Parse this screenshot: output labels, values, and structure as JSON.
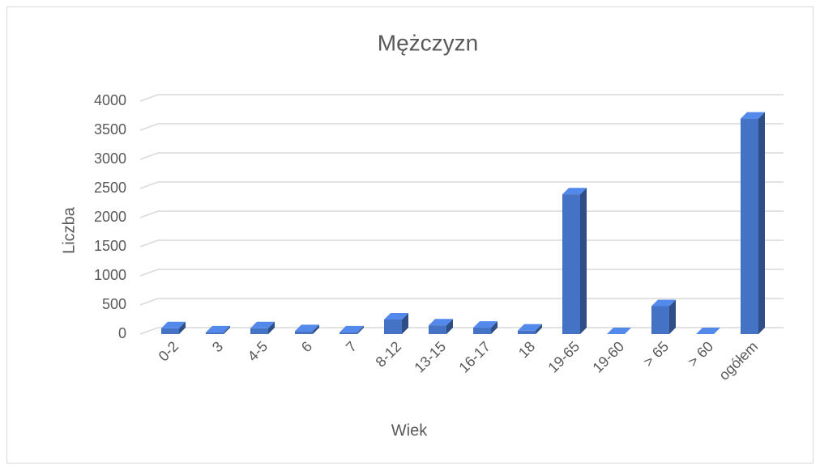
{
  "chart_data": {
    "type": "bar3d",
    "title": "Mężczyzn",
    "x_label": "Wiek",
    "y_label": "Liczba",
    "categories": [
      "0-2",
      "3",
      "4-5",
      "6",
      "7",
      "8-12",
      "13-15",
      "16-17",
      "18",
      "19-65",
      "19-60",
      "> 65",
      "> 60",
      "ogółem"
    ],
    "values": [
      100,
      30,
      100,
      50,
      30,
      250,
      150,
      110,
      60,
      2400,
      0,
      480,
      0,
      3700
    ],
    "color": "#4472c4",
    "ylim": [
      0,
      4000
    ],
    "yticks": [
      0,
      500,
      1000,
      1500,
      2000,
      2500,
      3000,
      3500,
      4000
    ],
    "grid": true
  }
}
